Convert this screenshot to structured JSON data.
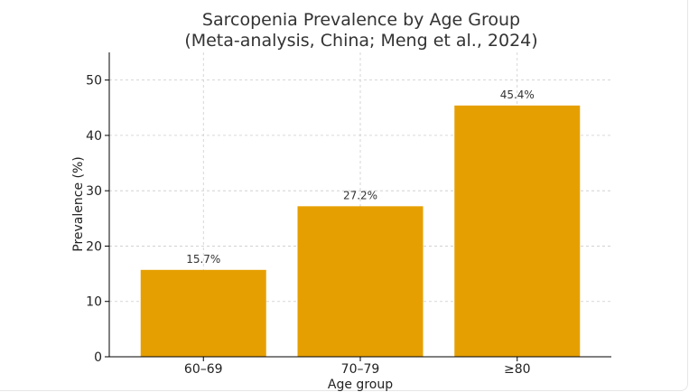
{
  "chart_data": {
    "type": "bar",
    "title": "Sarcopenia Prevalence by Age Group",
    "subtitle": "(Meta-analysis, China; Meng et al., 2024)",
    "xlabel": "Age group",
    "ylabel": "Prevalence (%)",
    "categories": [
      "60–69",
      "70–79",
      "≥80"
    ],
    "values": [
      15.7,
      27.2,
      45.4
    ],
    "data_labels": [
      "15.7%",
      "27.2%",
      "45.4%"
    ],
    "ylim": [
      0,
      55
    ],
    "yticks": [
      0,
      10,
      20,
      30,
      40,
      50
    ],
    "grid": true,
    "bar_color": "#E69F00"
  }
}
